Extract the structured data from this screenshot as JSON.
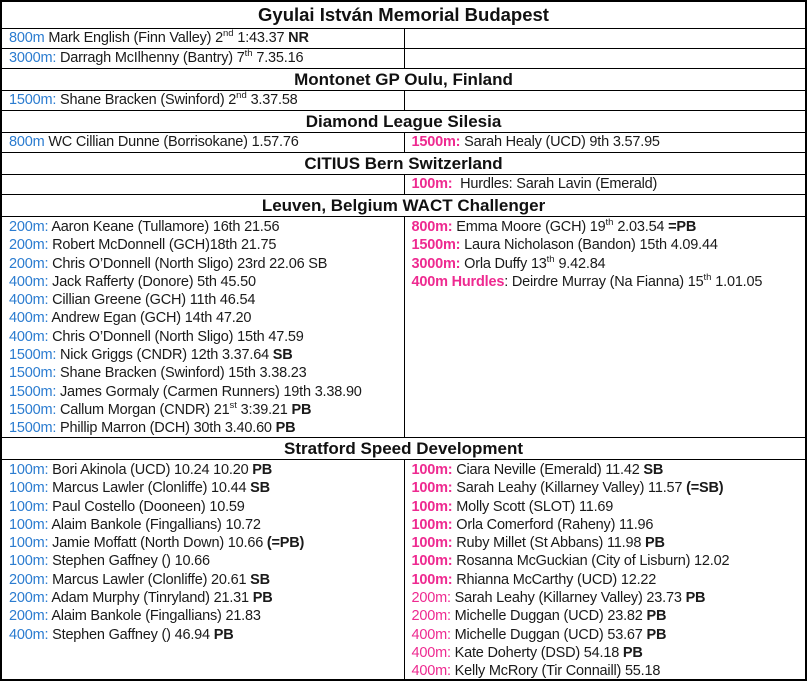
{
  "colors": {
    "event_blue": "#2b7cd0",
    "event_pink": "#ee2a90",
    "text": "#1a1a1a",
    "border": "#000000"
  },
  "sections": [
    {
      "id": "gyulai-istvan-memorial-budapest",
      "title": "Gyulai István Memorial Budapest",
      "rows": [
        {
          "left": [
            [
              {
                "t": "800m",
                "c": "blue"
              },
              {
                "t": " Mark English (Finn Valley) 2"
              },
              {
                "t": "nd",
                "sup": true
              },
              {
                "t": " 1:43.37 "
              },
              {
                "t": "NR",
                "b": true
              }
            ]
          ],
          "right": []
        },
        {
          "left": [
            [
              {
                "t": "3000m:",
                "c": "blue"
              },
              {
                "t": " Darragh McIlhenny (Bantry) 7"
              },
              {
                "t": "th",
                "sup": true
              },
              {
                "t": " 7.35.16"
              }
            ]
          ],
          "right": []
        }
      ]
    },
    {
      "id": "montonet-gp-oulu-finland",
      "title": "Montonet GP Oulu, Finland",
      "rows": [
        {
          "left": [
            [
              {
                "t": "1500m:",
                "c": "blue"
              },
              {
                "t": " Shane Bracken (Swinford) 2"
              },
              {
                "t": "nd",
                "sup": true
              },
              {
                "t": " 3.37.58"
              }
            ]
          ],
          "right": []
        }
      ]
    },
    {
      "id": "diamond-league-silesia",
      "title": "Diamond League Silesia",
      "rows": [
        {
          "left": [
            [
              {
                "t": "800m",
                "c": "blue"
              },
              {
                "t": " WC Cillian Dunne (Borrisokane) 1.57.76"
              }
            ]
          ],
          "right": [
            [
              {
                "t": "1500m:",
                "c": "pink",
                "b": true
              },
              {
                "t": " Sarah Healy (UCD) 9th 3.57.95"
              }
            ]
          ]
        }
      ]
    },
    {
      "id": "citius-bern-switzerland",
      "title": "CITIUS Bern Switzerland",
      "rows": [
        {
          "left": [],
          "right": [
            [
              {
                "t": "100m:",
                "c": "pink",
                "b": true
              },
              {
                "t": "  Hurdles: Sarah Lavin (Emerald)"
              }
            ]
          ]
        }
      ]
    },
    {
      "id": "leuven-belgium-wact-challenger",
      "title": "Leuven, Belgium WACT Challenger",
      "rows": [
        {
          "left": [
            [
              {
                "t": "200m:",
                "c": "blue"
              },
              {
                "t": " Aaron Keane (Tullamore) 16th 21.56"
              }
            ],
            [
              {
                "t": "200m:",
                "c": "blue"
              },
              {
                "t": " Robert McDonnell (GCH)18th 21.75"
              }
            ],
            [
              {
                "t": "200m:",
                "c": "blue"
              },
              {
                "t": " Chris O’Donnell (North Sligo) 23rd 22.06 SB"
              }
            ],
            [
              {
                "t": "400m:",
                "c": "blue"
              },
              {
                "t": " Jack Rafferty (Donore) 5th 45.50"
              }
            ],
            [
              {
                "t": "400m:",
                "c": "blue"
              },
              {
                "t": " Cillian Greene (GCH) 11th 46.54"
              }
            ],
            [
              {
                "t": "400m:",
                "c": "blue"
              },
              {
                "t": " Andrew Egan (GCH) 14th 47.20"
              }
            ],
            [
              {
                "t": "400m:",
                "c": "blue"
              },
              {
                "t": " Chris O’Donnell (North Sligo) 15th 47.59"
              }
            ],
            [
              {
                "t": "1500m:",
                "c": "blue"
              },
              {
                "t": " Nick Griggs (CNDR) 12th 3.37.64 "
              },
              {
                "t": "SB",
                "b": true
              }
            ],
            [
              {
                "t": "1500m:",
                "c": "blue"
              },
              {
                "t": " Shane Bracken (Swinford) 15th 3.38.23"
              }
            ],
            [
              {
                "t": "1500m:",
                "c": "blue"
              },
              {
                "t": " James Gormaly (Carmen Runners) 19th 3.38.90"
              }
            ],
            [
              {
                "t": "1500m:",
                "c": "blue"
              },
              {
                "t": " Callum Morgan (CNDR) 21"
              },
              {
                "t": "st",
                "sup": true
              },
              {
                "t": " 3:39.21 "
              },
              {
                "t": "PB",
                "b": true
              }
            ],
            [
              {
                "t": "1500m:",
                "c": "blue"
              },
              {
                "t": " Phillip Marron (DCH) 30th 3.40.60 "
              },
              {
                "t": "PB",
                "b": true
              }
            ]
          ],
          "right": [
            [
              {
                "t": "800m:",
                "c": "pink",
                "b": true
              },
              {
                "t": " Emma Moore (GCH) 19"
              },
              {
                "t": "th",
                "sup": true
              },
              {
                "t": " 2.03.54 "
              },
              {
                "t": "=PB",
                "b": true
              }
            ],
            [
              {
                "t": "1500m:",
                "c": "pink",
                "b": true
              },
              {
                "t": " Laura Nicholason (Bandon) 15th 4.09.44"
              }
            ],
            [
              {
                "t": "3000m:",
                "c": "pink",
                "b": true
              },
              {
                "t": " Orla Duffy 13"
              },
              {
                "t": "th",
                "sup": true
              },
              {
                "t": " 9.42.84"
              }
            ],
            [
              {
                "t": "400m Hurdles",
                "c": "pink",
                "b": true
              },
              {
                "t": ": Deirdre Murray (Na Fianna) 15"
              },
              {
                "t": "th",
                "sup": true
              },
              {
                "t": " 1.01.05"
              }
            ]
          ]
        }
      ]
    },
    {
      "id": "stratford-speed-development",
      "title": "Stratford Speed Development",
      "rows": [
        {
          "left": [
            [
              {
                "t": "100m:",
                "c": "blue"
              },
              {
                "t": " Bori Akinola (UCD) 10.24 10.20 "
              },
              {
                "t": "PB",
                "b": true
              }
            ],
            [
              {
                "t": "100m:",
                "c": "blue"
              },
              {
                "t": " Marcus Lawler (Clonliffe) 10.44 "
              },
              {
                "t": "SB",
                "b": true
              }
            ],
            [
              {
                "t": "100m:",
                "c": "blue"
              },
              {
                "t": " Paul Costello (Dooneen) 10.59"
              }
            ],
            [
              {
                "t": "100m:",
                "c": "blue"
              },
              {
                "t": " Alaim Bankole (Fingallians) 10.72"
              }
            ],
            [
              {
                "t": "100m:",
                "c": "blue"
              },
              {
                "t": " Jamie Moffatt (North Down) 10.66 "
              },
              {
                "t": "(=PB)",
                "b": true
              }
            ],
            [
              {
                "t": "100m:",
                "c": "blue"
              },
              {
                "t": " Stephen Gaffney () 10.66"
              }
            ],
            [
              {
                "t": "200m:",
                "c": "blue"
              },
              {
                "t": " Marcus Lawler (Clonliffe) 20.61 "
              },
              {
                "t": "SB",
                "b": true
              }
            ],
            [
              {
                "t": "200m:",
                "c": "blue"
              },
              {
                "t": " Adam Murphy (Tinryland) 21.31 "
              },
              {
                "t": "PB",
                "b": true
              }
            ],
            [
              {
                "t": "200m:",
                "c": "blue"
              },
              {
                "t": " Alaim Bankole (Fingallians) 21.83"
              }
            ],
            [
              {
                "t": "400m:",
                "c": "blue"
              },
              {
                "t": " Stephen Gaffney () 46.94 "
              },
              {
                "t": "PB",
                "b": true
              }
            ]
          ],
          "right": [
            [
              {
                "t": "100m:",
                "c": "pink",
                "b": true
              },
              {
                "t": " Ciara Neville (Emerald) 11.42 "
              },
              {
                "t": "SB",
                "b": true
              }
            ],
            [
              {
                "t": "100m:",
                "c": "pink",
                "b": true
              },
              {
                "t": " Sarah Leahy (Killarney Valley) 11.57 "
              },
              {
                "t": "(=SB)",
                "b": true
              }
            ],
            [
              {
                "t": "100m:",
                "c": "pink",
                "b": true
              },
              {
                "t": " Molly Scott (SLOT) 11.69"
              }
            ],
            [
              {
                "t": "100m:",
                "c": "pink",
                "b": true
              },
              {
                "t": " Orla Comerford (Raheny) 11.96"
              }
            ],
            [
              {
                "t": "100m:",
                "c": "pink",
                "b": true
              },
              {
                "t": " Ruby Millet (St Abbans) 11.98 "
              },
              {
                "t": "PB",
                "b": true
              }
            ],
            [
              {
                "t": "100m:",
                "c": "pink",
                "b": true
              },
              {
                "t": " Rosanna McGuckian (City of Lisburn) 12.02"
              }
            ],
            [
              {
                "t": "100m:",
                "c": "pink",
                "b": true
              },
              {
                "t": " Rhianna McCarthy (UCD) 12.22"
              }
            ],
            [
              {
                "t": "200m:",
                "c": "pink"
              },
              {
                "t": " Sarah Leahy (Killarney Valley) 23.73 "
              },
              {
                "t": "PB",
                "b": true
              }
            ],
            [
              {
                "t": "200m:",
                "c": "pink"
              },
              {
                "t": " Michelle Duggan (UCD) 23.82 "
              },
              {
                "t": "PB",
                "b": true
              }
            ],
            [
              {
                "t": "400m:",
                "c": "pink"
              },
              {
                "t": " Michelle Duggan (UCD) 53.67 "
              },
              {
                "t": "PB",
                "b": true
              }
            ],
            [
              {
                "t": "400m:",
                "c": "pink"
              },
              {
                "t": " Kate Doherty (DSD) 54.18 "
              },
              {
                "t": "PB",
                "b": true
              }
            ],
            [
              {
                "t": "400m:",
                "c": "pink"
              },
              {
                "t": " Kelly McRory (Tir Connaill) 55.18"
              }
            ]
          ]
        }
      ]
    }
  ]
}
